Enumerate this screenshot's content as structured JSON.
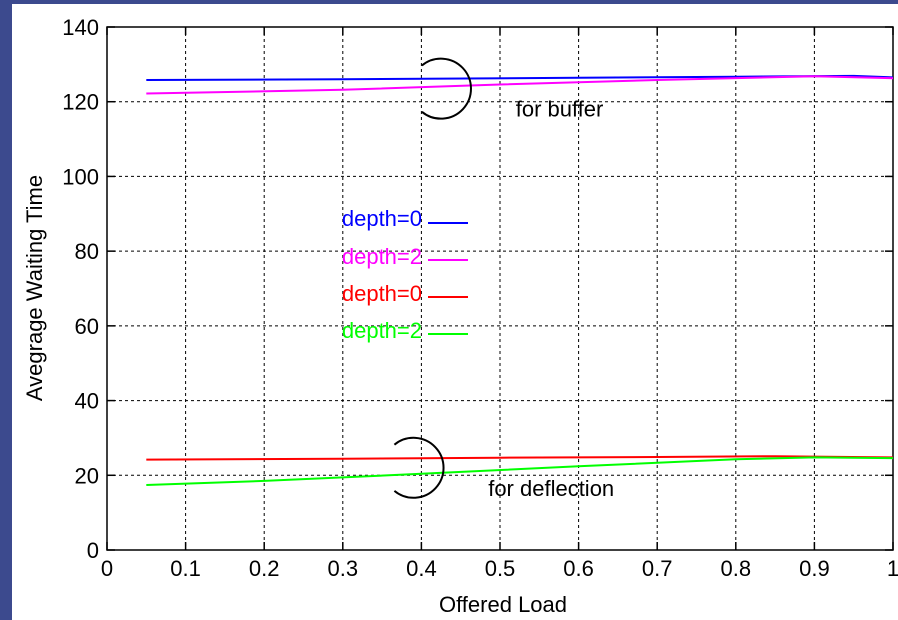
{
  "chart_data": {
    "type": "line",
    "xlabel": "Offered Load",
    "ylabel": "Avegrage Waiting Time",
    "xlim": [
      0,
      1
    ],
    "ylim": [
      0,
      140
    ],
    "grid": true,
    "x_ticks": [
      "0",
      "0.1",
      "0.2",
      "0.3",
      "0.4",
      "0.5",
      "0.6",
      "0.7",
      "0.8",
      "0.9",
      "1"
    ],
    "y_ticks": [
      "0",
      "20",
      "40",
      "60",
      "80",
      "100",
      "120",
      "140"
    ],
    "series": [
      {
        "name": "depth=0",
        "color": "#0000ff",
        "points": [
          [
            0.05,
            125.8
          ],
          [
            0.3,
            126.0
          ],
          [
            0.6,
            126.4
          ],
          [
            0.8,
            126.7
          ],
          [
            0.95,
            126.9
          ],
          [
            1.0,
            126.5
          ]
        ]
      },
      {
        "name": "depth=2",
        "color": "#ff00ff",
        "points": [
          [
            0.05,
            122.2
          ],
          [
            0.3,
            123.2
          ],
          [
            0.5,
            124.6
          ],
          [
            0.7,
            125.8
          ],
          [
            0.9,
            126.8
          ],
          [
            1.0,
            126.3
          ]
        ]
      },
      {
        "name": "depth=0",
        "color": "#ff0000",
        "points": [
          [
            0.05,
            24.2
          ],
          [
            0.3,
            24.4
          ],
          [
            0.5,
            24.7
          ],
          [
            0.7,
            24.9
          ],
          [
            0.85,
            25.1
          ],
          [
            1.0,
            24.8
          ]
        ]
      },
      {
        "name": "depth=2",
        "color": "#00ff00",
        "points": [
          [
            0.05,
            17.4
          ],
          [
            0.2,
            18.5
          ],
          [
            0.4,
            20.4
          ],
          [
            0.6,
            22.4
          ],
          [
            0.8,
            24.3
          ],
          [
            0.9,
            24.8
          ],
          [
            1.0,
            24.6
          ]
        ]
      }
    ],
    "annotations": [
      {
        "text": "for buffer",
        "x": 0.52,
        "y": 116
      },
      {
        "text": "for deflection",
        "x": 0.485,
        "y": 14.5
      }
    ]
  }
}
